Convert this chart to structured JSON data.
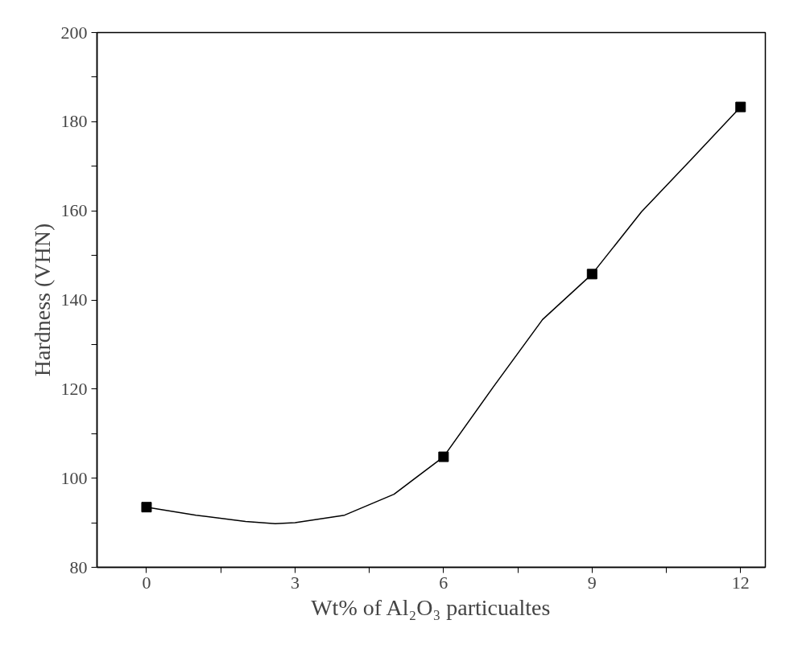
{
  "chart_data": {
    "type": "line",
    "xlabel": "Wt% of Al₂O₃ particualtes",
    "ylabel": "Hardness (VHN)",
    "xlim": [
      -1,
      12.5
    ],
    "ylim": [
      80,
      200
    ],
    "xticks": [
      0,
      {
        "value": 1.5,
        "label": null
      },
      3,
      {
        "value": 4.5,
        "label": null
      },
      6,
      {
        "value": 7.5,
        "label": null
      },
      9,
      {
        "value": 10.5,
        "label": null
      },
      12
    ],
    "yticks": [
      80,
      {
        "value": 90,
        "label": null
      },
      100,
      {
        "value": 110,
        "label": null
      },
      120,
      {
        "value": 130,
        "label": null
      },
      140,
      {
        "value": 150,
        "label": null
      },
      160,
      {
        "value": 170,
        "label": null
      },
      180,
      {
        "value": 190,
        "label": null
      },
      200
    ],
    "series": [
      {
        "color": "#000000",
        "marker": "none",
        "x": [
          0,
          1,
          2,
          2.6,
          3,
          4,
          5,
          6,
          7,
          8,
          9,
          10,
          11,
          12
        ],
        "values": [
          93.5,
          91.7,
          90.3,
          89.8,
          90,
          91.7,
          96.4,
          104.8,
          120.4,
          135.6,
          145.8,
          159.8,
          171.5,
          183.3
        ]
      },
      {
        "type": "scatter",
        "color": "#000000",
        "marker": "square",
        "x": [
          0,
          6,
          9,
          12
        ],
        "values": [
          93.5,
          104.8,
          145.8,
          183.3
        ]
      }
    ]
  }
}
